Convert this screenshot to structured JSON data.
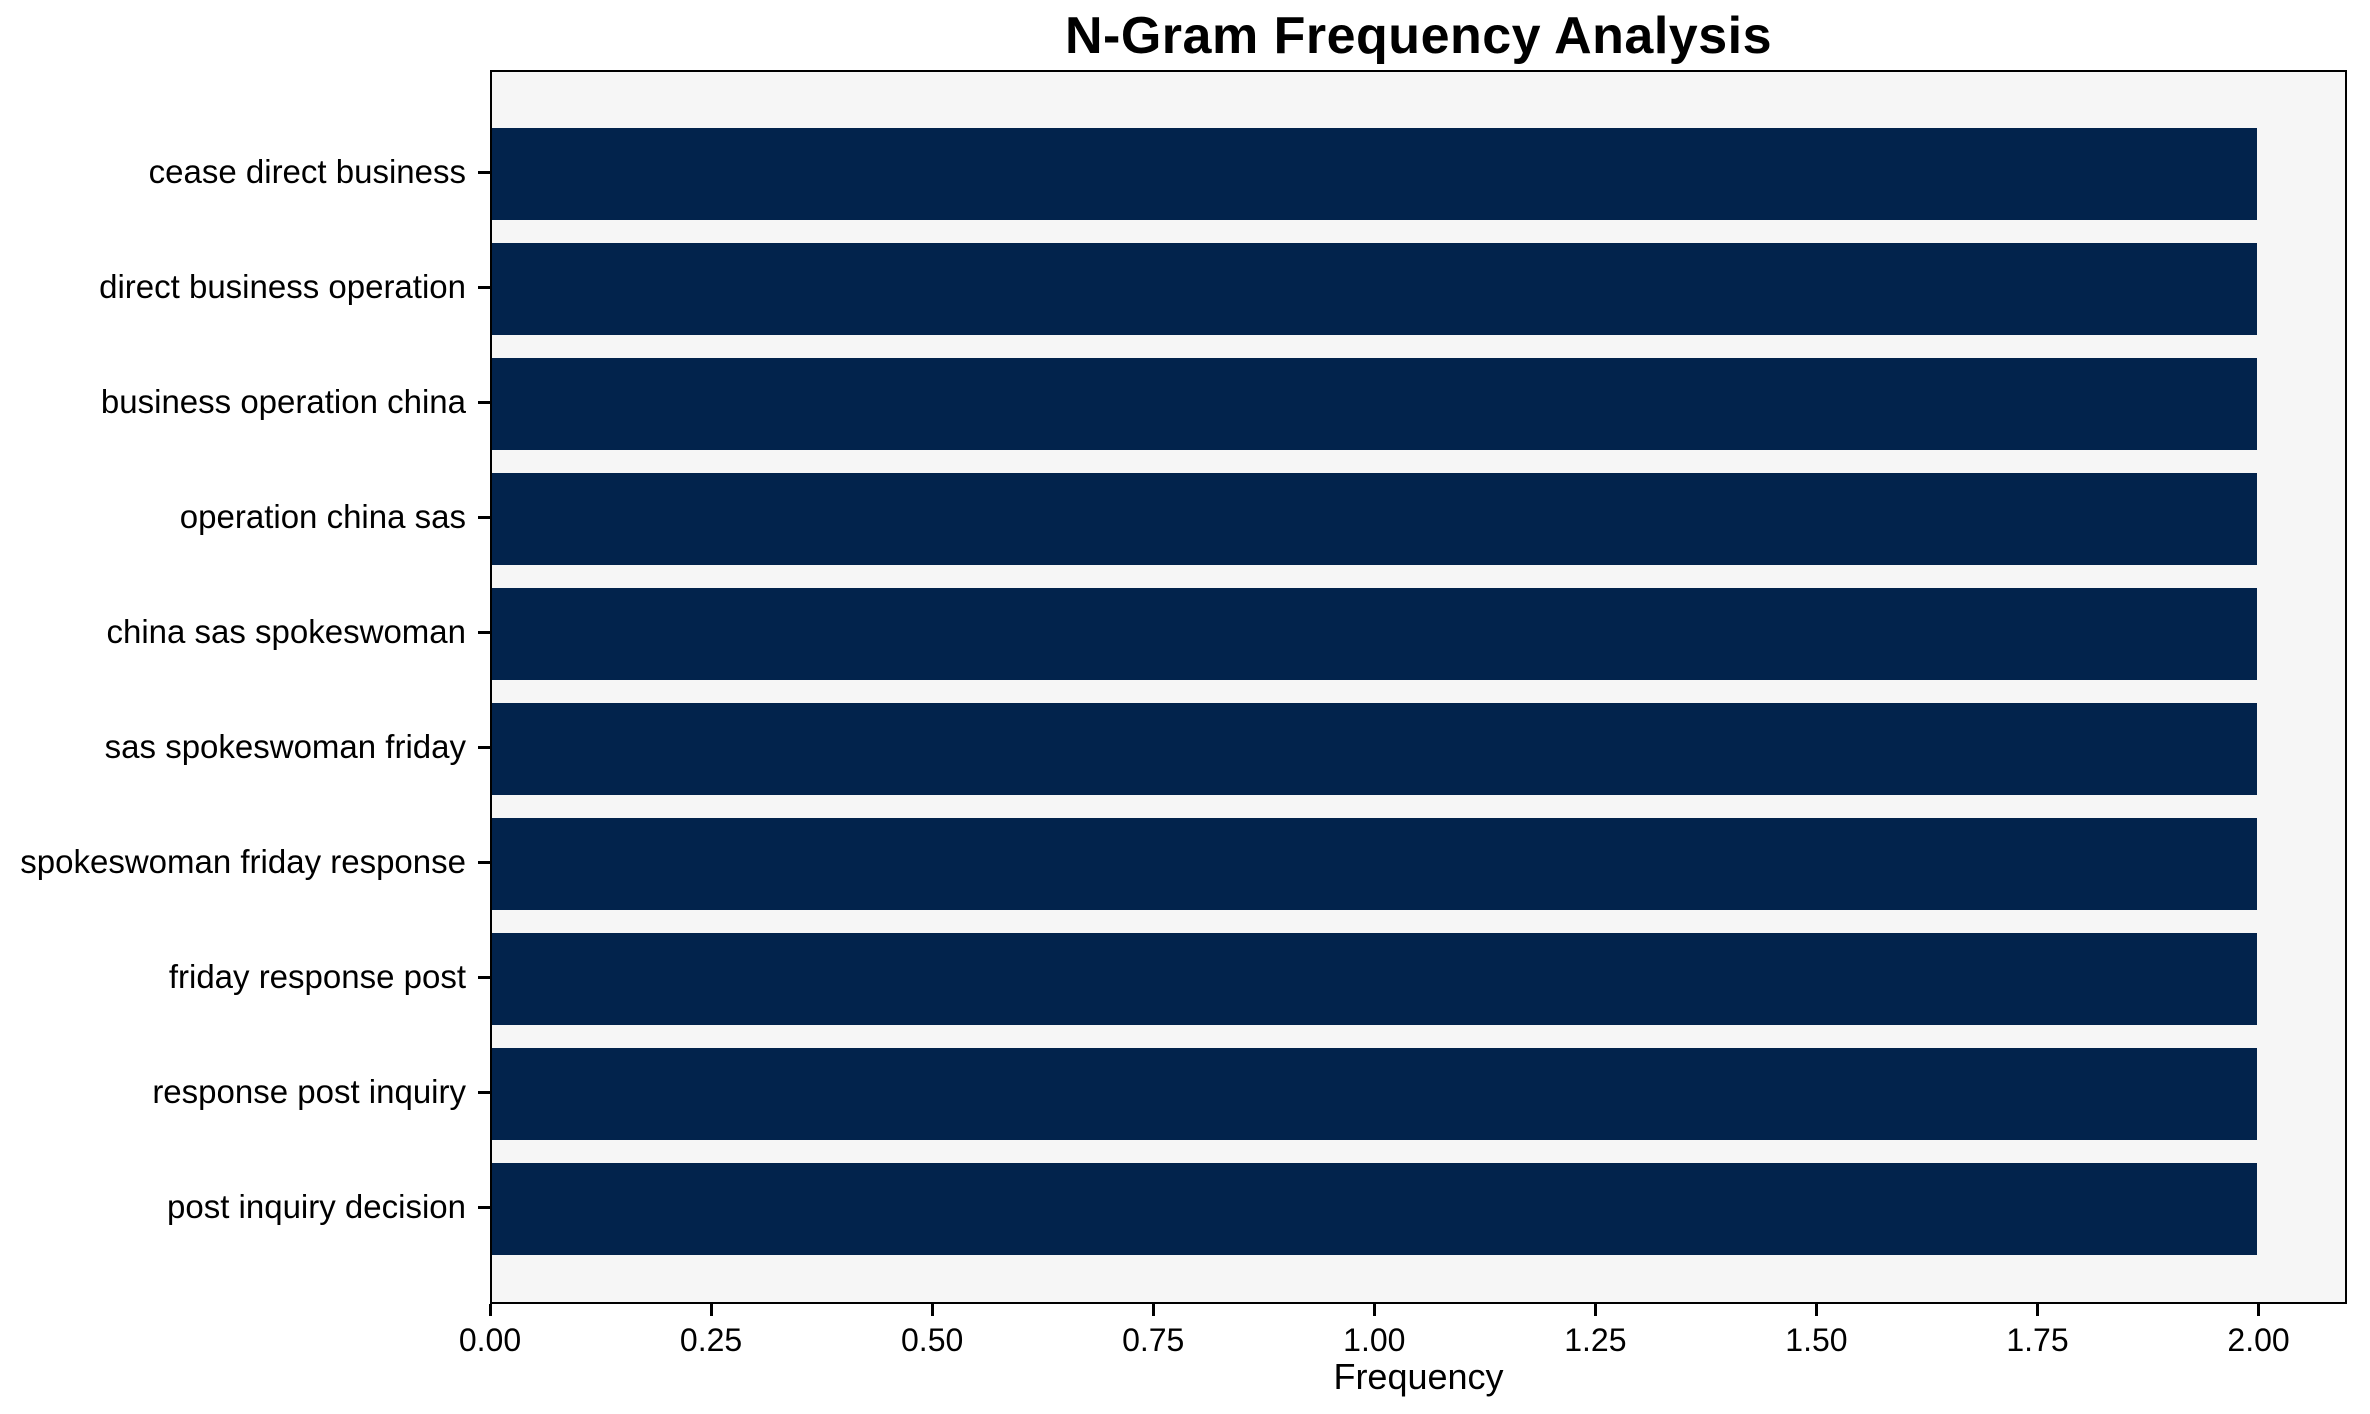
{
  "figure": {
    "title": "N-Gram Frequency Analysis",
    "xlabel": "Frequency"
  },
  "colors": {
    "bar": "#02234C",
    "plot_background": "#f6f6f6",
    "figure_background": "#ffffff",
    "spine": "#000000",
    "text": "#000000"
  },
  "chart_data": {
    "type": "bar",
    "orientation": "horizontal",
    "title": "N-Gram Frequency Analysis",
    "xlabel": "Frequency",
    "ylabel": "",
    "categories": [
      "cease direct business",
      "direct business operation",
      "business operation china",
      "operation china sas",
      "china sas spokeswoman",
      "sas spokeswoman friday",
      "spokeswoman friday response",
      "friday response post",
      "response post inquiry",
      "post inquiry decision"
    ],
    "values": [
      2,
      2,
      2,
      2,
      2,
      2,
      2,
      2,
      2,
      2
    ],
    "xlim": [
      0,
      2.1
    ],
    "xticks": [
      "0.00",
      "0.25",
      "0.50",
      "0.75",
      "1.00",
      "1.25",
      "1.50",
      "1.75",
      "2.00"
    ],
    "grid": false,
    "legend": null
  }
}
